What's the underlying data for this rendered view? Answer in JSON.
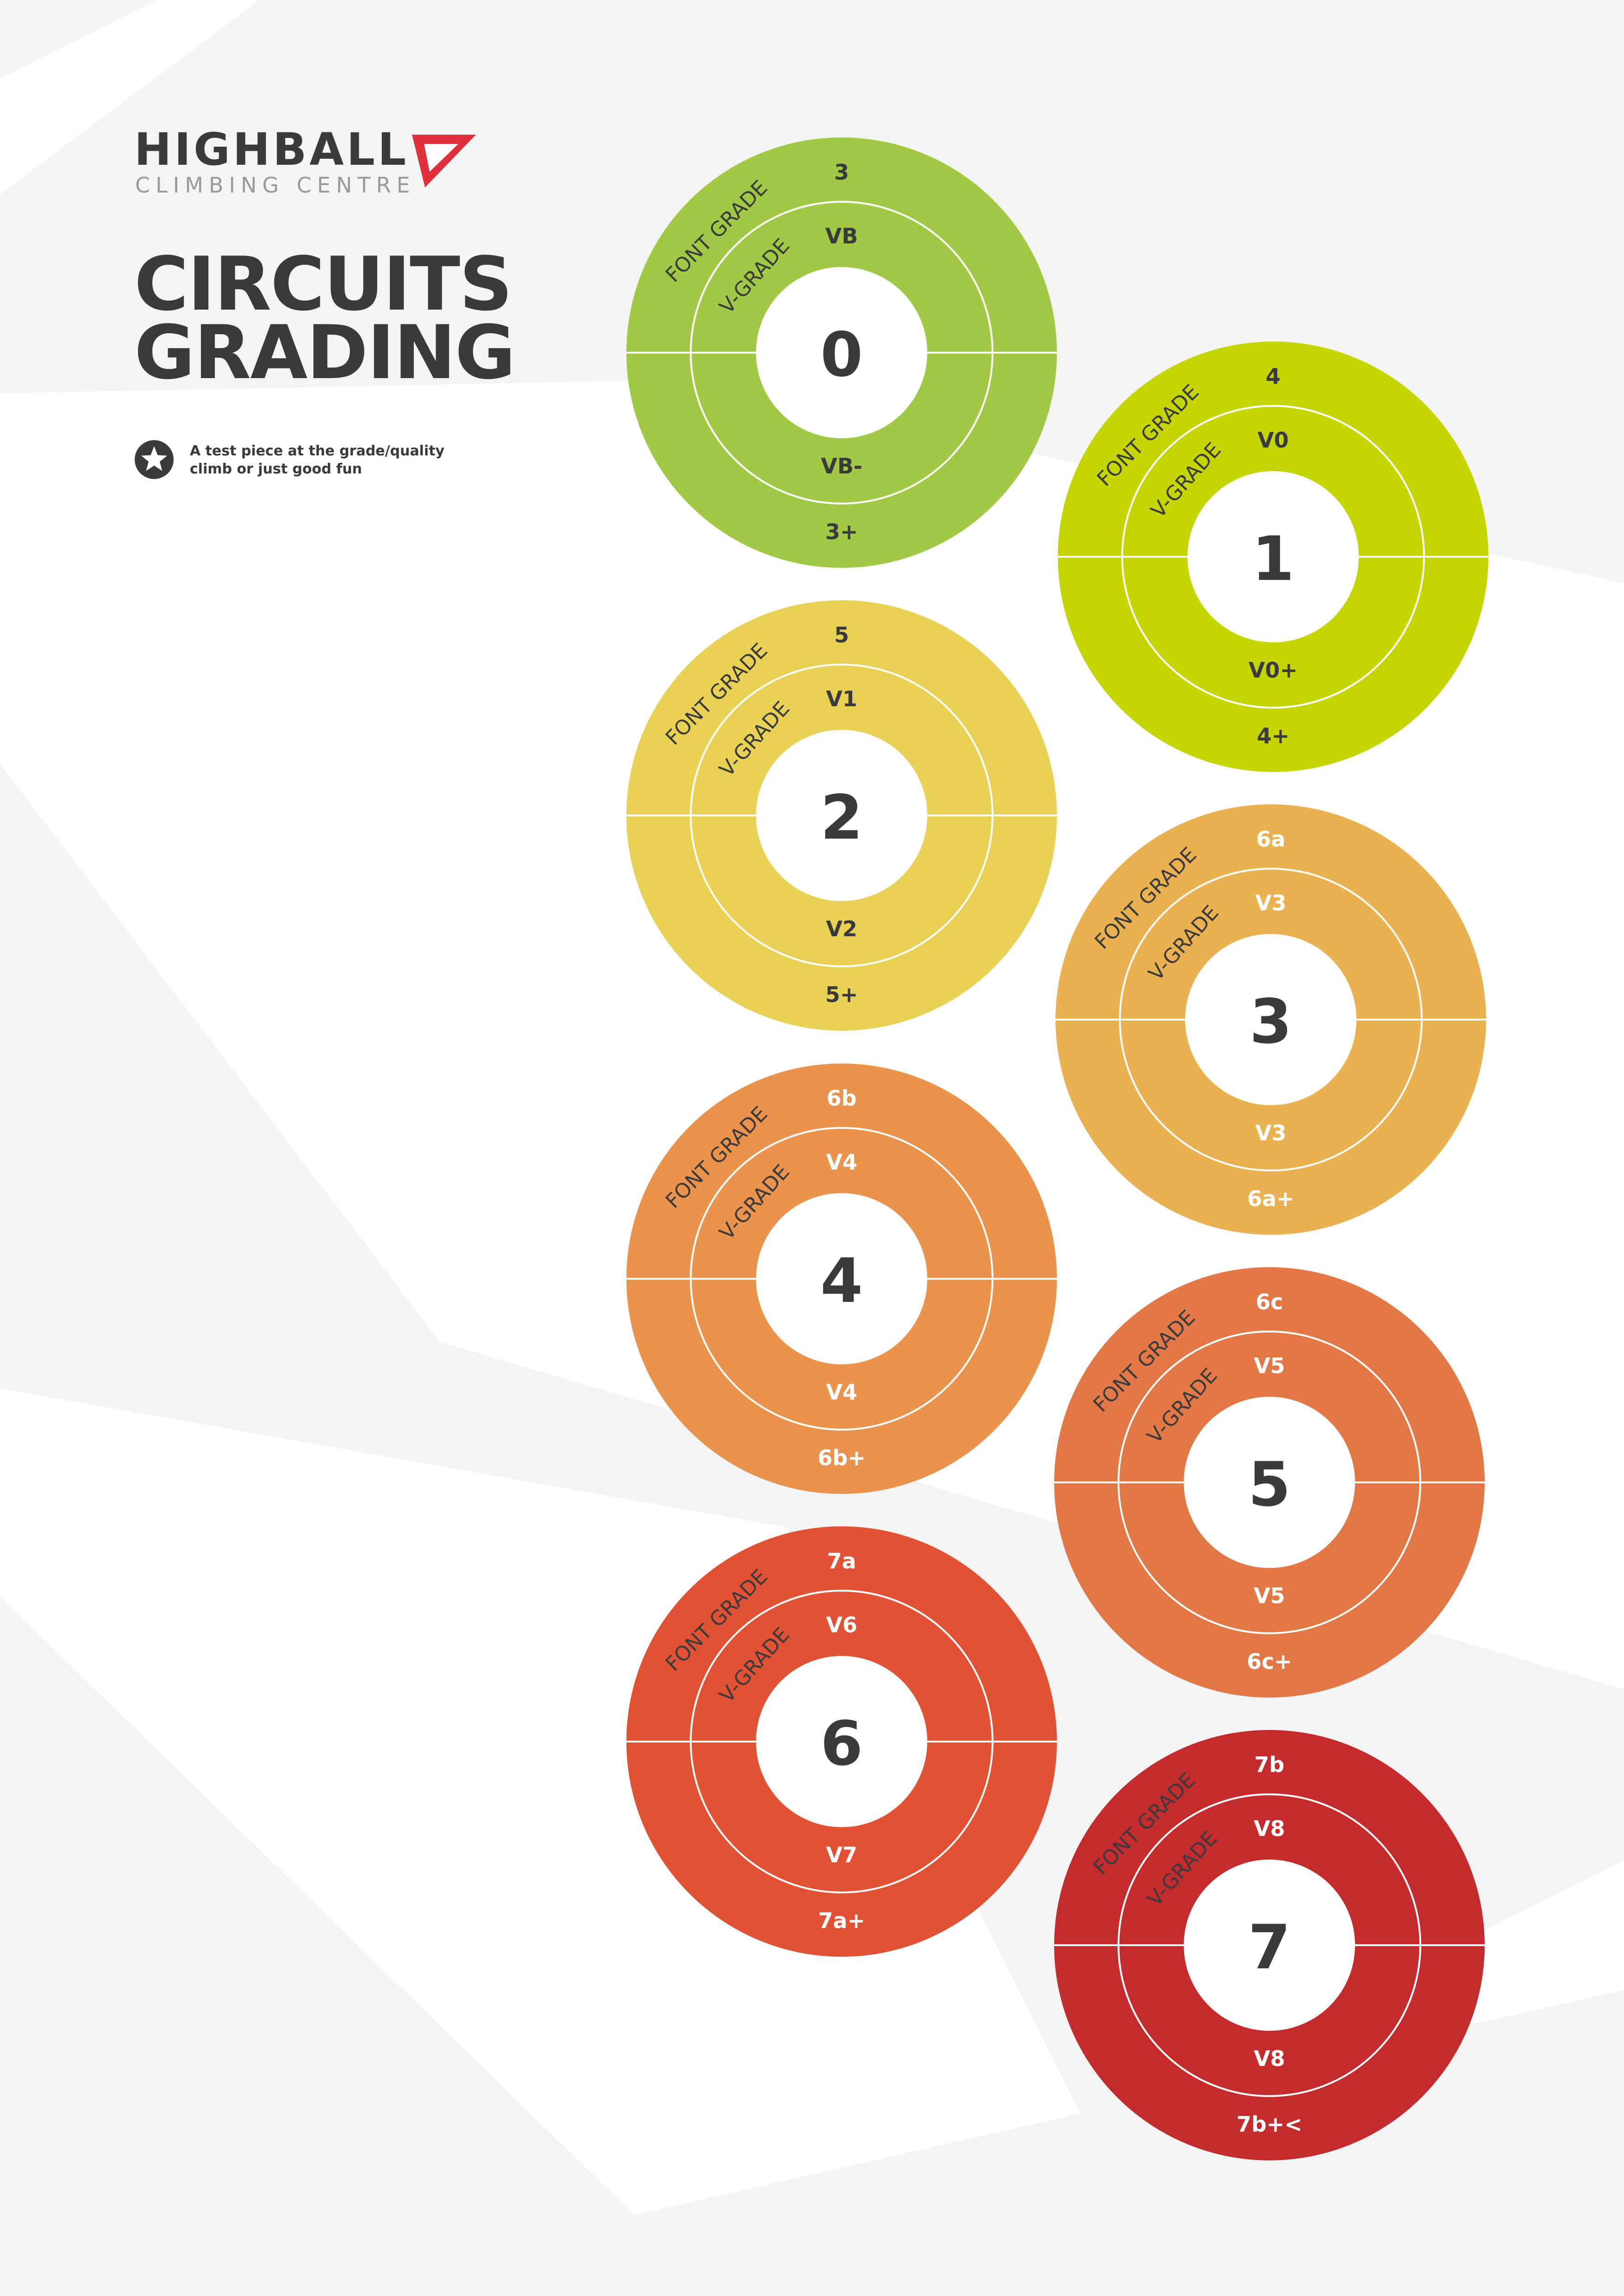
{
  "brand": {
    "name": "HIGHBALL",
    "subtitle": "CLIMBING CENTRE",
    "mark_color": "#e0303e"
  },
  "title": {
    "line1": "CIRCUITS",
    "line2": "GRADING"
  },
  "legend": {
    "icon": "star-icon",
    "line1": "A test piece at the grade/quality",
    "line2": "climb or just good fun"
  },
  "ring_labels": {
    "outer": "FONT GRADE",
    "inner": "V-GRADE"
  },
  "circuits": [
    {
      "level": "0",
      "font_top": "3",
      "v_top": "VB",
      "v_bottom": "VB-",
      "font_bottom": "3+",
      "color": "#a1c945",
      "text_color": "#3a3a3c"
    },
    {
      "level": "1",
      "font_top": "4",
      "v_top": "V0",
      "v_bottom": "V0+",
      "font_bottom": "4+",
      "color": "#c4d500",
      "text_color": "#3a3a3c"
    },
    {
      "level": "2",
      "font_top": "5",
      "v_top": "V1",
      "v_bottom": "V2",
      "font_bottom": "5+",
      "color": "#e8d155",
      "text_color": "#3a3a3c"
    },
    {
      "level": "3",
      "font_top": "6a",
      "v_top": "V3",
      "v_bottom": "V3",
      "font_bottom": "6a+",
      "color": "#eab150",
      "text_color": "#ffffff"
    },
    {
      "level": "4",
      "font_top": "6b",
      "v_top": "V4",
      "v_bottom": "V4",
      "font_bottom": "6b+",
      "color": "#e9934c",
      "text_color": "#ffffff"
    },
    {
      "level": "5",
      "font_top": "6c",
      "v_top": "V5",
      "v_bottom": "V5",
      "font_bottom": "6c+",
      "color": "#e37847",
      "text_color": "#ffffff"
    },
    {
      "level": "6",
      "font_top": "7a",
      "v_top": "V6",
      "v_bottom": "V7",
      "font_bottom": "7a+",
      "color": "#e15234",
      "text_color": "#ffffff"
    },
    {
      "level": "7",
      "font_top": "7b",
      "v_top": "V8",
      "v_bottom": "V8",
      "font_bottom": "7b+<",
      "color": "#c42b2c",
      "text_color": "#ffffff"
    }
  ],
  "colors": {
    "background": "#ffffff",
    "background_shapes": "#f4f4f4",
    "dark_text": "#3a3a3c"
  }
}
